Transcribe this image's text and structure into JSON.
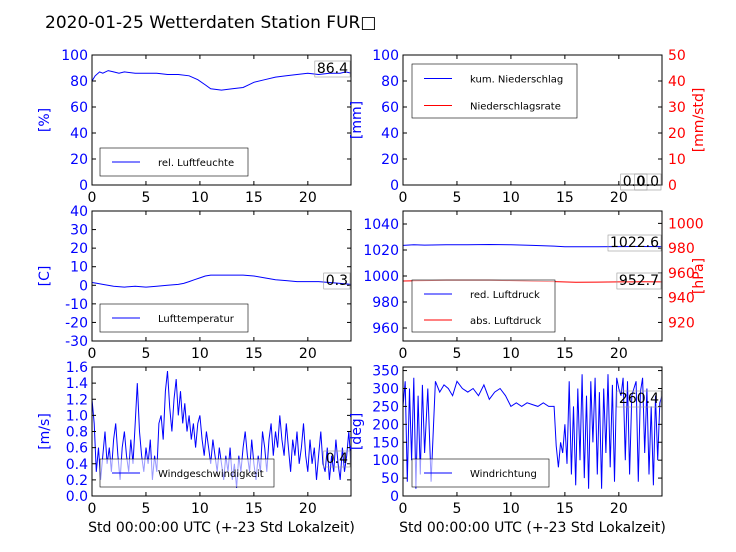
{
  "figure": {
    "title": "2020-01-25 Wetterdaten Station FUR□",
    "colors": {
      "blue": "#0000ff",
      "red": "#ff0000",
      "black": "#000000"
    }
  },
  "chart_data": [
    {
      "id": "hum",
      "type": "line",
      "xlim": [
        0,
        24
      ],
      "ylim": [
        0,
        100
      ],
      "xticks": [
        0,
        5,
        10,
        15,
        20
      ],
      "yticks": [
        0,
        20,
        40,
        60,
        80,
        100
      ],
      "ylabel": "[%]",
      "xlabel": "",
      "legend_placement": "lower-left",
      "current_value": "86.4",
      "series": [
        {
          "name": "rel. Luftfeuchte",
          "color": "#0000ff",
          "axis": "left",
          "x": [
            0,
            0.3,
            0.7,
            1.0,
            1.5,
            2.0,
            2.5,
            3.0,
            4.0,
            5.0,
            6.0,
            7.0,
            8.0,
            9.0,
            9.8,
            10.5,
            11.0,
            12.0,
            13.0,
            14.0,
            14.5,
            15.0,
            16.0,
            17.0,
            18.0,
            19.0,
            20.0,
            21.0,
            22.0,
            23.0,
            23.5,
            24.0
          ],
          "y": [
            80,
            84,
            87,
            86,
            88,
            87,
            86,
            87,
            86,
            86,
            86,
            85,
            85,
            84,
            81,
            77,
            74,
            73,
            74,
            75,
            77,
            79,
            81,
            83,
            84,
            85,
            86,
            85,
            86,
            86,
            87,
            86
          ]
        }
      ]
    },
    {
      "id": "rain",
      "type": "line",
      "xlim": [
        0,
        24
      ],
      "ylim": [
        0,
        100
      ],
      "ylim_right": [
        0,
        50
      ],
      "xticks": [
        0,
        5,
        10,
        15,
        20
      ],
      "yticks": [
        0,
        20,
        40,
        60,
        80,
        100
      ],
      "yticks_right": [
        0,
        10,
        20,
        30,
        40,
        50
      ],
      "ylabel": "[mm]",
      "ylabel_right": "[mm/std]",
      "xlabel": "",
      "legend_placement": "upper-left",
      "current_value": "0.0",
      "current_value_2": "0.0",
      "series": [
        {
          "name": "kum. Niederschlag",
          "color": "#0000ff",
          "axis": "left",
          "x": [
            0,
            24
          ],
          "y": [
            0,
            0
          ]
        },
        {
          "name": "Niederschlagsrate",
          "color": "#ff0000",
          "axis": "right",
          "x": [
            0,
            24
          ],
          "y": [
            0,
            0
          ]
        }
      ]
    },
    {
      "id": "temp",
      "type": "line",
      "xlim": [
        0,
        24
      ],
      "ylim": [
        -30,
        40
      ],
      "xticks": [
        0,
        5,
        10,
        15,
        20
      ],
      "yticks": [
        -30,
        -20,
        -10,
        0,
        10,
        20,
        30,
        40
      ],
      "ylabel": "[C]",
      "xlabel": "",
      "legend_placement": "lower-left",
      "current_value": "0.3",
      "series": [
        {
          "name": "Lufttemperatur",
          "color": "#0000ff",
          "axis": "left",
          "x": [
            0,
            0.5,
            1.0,
            2.0,
            3.0,
            4.0,
            5.0,
            6.0,
            7.0,
            8.0,
            8.5,
            9.0,
            9.5,
            10.0,
            10.5,
            11.0,
            12.0,
            13.0,
            14.0,
            15.0,
            16.0,
            17.0,
            18.0,
            19.0,
            20.0,
            21.0,
            22.0,
            23.0,
            24.0
          ],
          "y": [
            1.5,
            1.0,
            0.5,
            -0.5,
            -1.0,
            -0.5,
            -1.0,
            -0.5,
            0,
            0.5,
            1.0,
            2.0,
            3.0,
            4.0,
            5.0,
            5.5,
            5.5,
            5.5,
            5.5,
            5.0,
            4.0,
            3.0,
            2.5,
            2.0,
            2.0,
            2.0,
            1.5,
            1.0,
            0.5
          ]
        }
      ]
    },
    {
      "id": "pressure",
      "type": "line",
      "xlim": [
        0,
        24
      ],
      "ylim": [
        950,
        1050
      ],
      "ylim_right": [
        905,
        1010
      ],
      "xticks": [
        0,
        5,
        10,
        15,
        20
      ],
      "yticks": [
        960,
        980,
        1000,
        1020,
        1040
      ],
      "yticks_right": [
        920,
        940,
        960,
        980,
        1000
      ],
      "ylabel": "",
      "ylabel_right": "[hPa]",
      "xlabel": "",
      "legend_placement": "lower-left",
      "current_value": "1022.6",
      "current_value_2": "952.7",
      "series": [
        {
          "name": "red. Luftdruck",
          "color": "#0000ff",
          "axis": "left",
          "x": [
            0,
            1,
            2,
            4,
            6,
            8,
            10,
            12,
            14,
            15,
            16,
            18,
            20,
            22,
            24
          ],
          "y": [
            1023.5,
            1024,
            1023.8,
            1024,
            1024,
            1024.2,
            1024,
            1023.5,
            1023,
            1022.5,
            1022.5,
            1022.5,
            1022.6,
            1022.7,
            1022.6
          ]
        },
        {
          "name": "abs. Luftdruck",
          "color": "#ff0000",
          "axis": "right",
          "x": [
            0,
            2,
            4,
            6,
            8,
            10,
            12,
            14,
            16,
            18,
            20,
            22,
            24
          ],
          "y": [
            953.5,
            953.8,
            954,
            954,
            954,
            953.8,
            953.3,
            953,
            952.5,
            952.6,
            952.7,
            952.8,
            952.7
          ]
        }
      ]
    },
    {
      "id": "wind",
      "type": "line",
      "xlim": [
        0,
        24
      ],
      "ylim": [
        0,
        1.6
      ],
      "xticks": [
        0,
        5,
        10,
        15,
        20
      ],
      "yticks": [
        0.0,
        0.2,
        0.4,
        0.6,
        0.8,
        1.0,
        1.2,
        1.4,
        1.6
      ],
      "ylabel": "[m/s]",
      "xlabel": "Std 00:00:00 UTC (+-23 Std Lokalzeit)",
      "legend_placement": "lower-left",
      "current_value": "0.4",
      "series": [
        {
          "name": "Windgeschwindigkeit",
          "color": "#0000ff",
          "axis": "left",
          "x": [
            0,
            0.2,
            0.4,
            0.6,
            0.8,
            1.0,
            1.2,
            1.4,
            1.6,
            1.8,
            2.0,
            2.2,
            2.4,
            2.6,
            2.8,
            3.0,
            3.2,
            3.4,
            3.6,
            3.8,
            4.0,
            4.2,
            4.4,
            4.6,
            4.8,
            5.0,
            5.2,
            5.4,
            5.6,
            5.8,
            6.0,
            6.2,
            6.4,
            6.6,
            6.8,
            7.0,
            7.2,
            7.4,
            7.6,
            7.8,
            8.0,
            8.2,
            8.4,
            8.6,
            8.8,
            9.0,
            9.2,
            9.4,
            9.6,
            9.8,
            10.0,
            10.2,
            10.4,
            10.6,
            10.8,
            11.0,
            11.2,
            11.4,
            11.6,
            11.8,
            12.0,
            12.2,
            12.4,
            12.6,
            12.8,
            13.0,
            13.2,
            13.4,
            13.6,
            13.8,
            14.0,
            14.2,
            14.4,
            14.6,
            14.8,
            15.0,
            15.2,
            15.4,
            15.6,
            15.8,
            16.0,
            16.2,
            16.4,
            16.6,
            16.8,
            17.0,
            17.2,
            17.4,
            17.6,
            17.8,
            18.0,
            18.2,
            18.4,
            18.6,
            18.8,
            19.0,
            19.2,
            19.4,
            19.6,
            19.8,
            20.0,
            20.2,
            20.4,
            20.6,
            20.8,
            21.0,
            21.2,
            21.4,
            21.6,
            21.8,
            22.0,
            22.2,
            22.4,
            22.6,
            22.8,
            23.0,
            23.2,
            23.4,
            23.6,
            23.8,
            24.0
          ],
          "y": [
            1.2,
            0.9,
            0.3,
            0.6,
            0.2,
            0.5,
            0.8,
            0.4,
            0.6,
            0.3,
            0.7,
            0.9,
            0.5,
            0.2,
            0.6,
            0.8,
            0.5,
            0.3,
            0.7,
            0.4,
            0.9,
            1.4,
            0.8,
            0.5,
            0.3,
            0.6,
            0.4,
            0.7,
            0.2,
            0.5,
            0.3,
            0.9,
            1.0,
            0.7,
            1.3,
            1.55,
            1.1,
            0.8,
            1.2,
            1.45,
            1.0,
            1.3,
            0.9,
            1.15,
            0.8,
            1.0,
            0.7,
            0.9,
            0.6,
            0.9,
            1.0,
            0.7,
            0.5,
            0.8,
            0.6,
            0.4,
            0.7,
            0.5,
            0.3,
            0.6,
            0.4,
            0.2,
            0.5,
            0.3,
            0.6,
            0.2,
            0.4,
            0.1,
            0.5,
            0.3,
            0.6,
            0.8,
            0.5,
            0.3,
            0.7,
            0.4,
            0.2,
            0.5,
            0.3,
            0.8,
            0.6,
            0.3,
            0.7,
            0.9,
            0.5,
            0.8,
            0.6,
            1.0,
            0.7,
            0.5,
            0.9,
            0.6,
            0.3,
            0.7,
            0.5,
            0.8,
            0.4,
            0.6,
            0.9,
            0.5,
            0.3,
            0.7,
            0.4,
            0.6,
            0.2,
            0.5,
            0.8,
            0.4,
            0.3,
            0.6,
            0.2,
            0.5,
            0.3,
            0.7,
            0.4,
            0.2,
            0.6,
            0.3,
            0.5,
            0.8,
            0.4
          ]
        }
      ]
    },
    {
      "id": "dir",
      "type": "line",
      "xlim": [
        0,
        24
      ],
      "ylim": [
        0,
        360
      ],
      "xticks": [
        0,
        5,
        10,
        15,
        20
      ],
      "yticks": [
        0,
        50,
        100,
        150,
        200,
        250,
        300,
        350
      ],
      "ylabel": "[deg]",
      "xlabel": "Std 00:00:00 UTC (+-23 Std Lokalzeit)",
      "legend_placement": "lower-left",
      "current_value": "260.4",
      "series": [
        {
          "name": "Windrichtung",
          "color": "#0000ff",
          "axis": "left",
          "x": [
            0,
            0.2,
            0.4,
            0.6,
            0.8,
            1.0,
            1.2,
            1.4,
            1.6,
            1.8,
            2.0,
            2.3,
            2.6,
            3.0,
            3.4,
            3.8,
            4.2,
            4.6,
            5.0,
            5.5,
            6.0,
            6.5,
            7.0,
            7.5,
            8.0,
            8.5,
            9.0,
            9.5,
            10.0,
            10.5,
            11.0,
            11.5,
            12.0,
            12.5,
            13.0,
            13.5,
            14.0,
            14.2,
            14.4,
            14.6,
            14.8,
            15.0,
            15.2,
            15.4,
            15.6,
            15.8,
            16.0,
            16.2,
            16.4,
            16.6,
            16.8,
            17.0,
            17.2,
            17.4,
            17.6,
            17.8,
            18.0,
            18.2,
            18.4,
            18.6,
            18.8,
            19.0,
            19.2,
            19.4,
            19.6,
            19.8,
            20.0,
            20.2,
            20.4,
            20.6,
            20.8,
            21.0,
            21.2,
            21.4,
            21.6,
            21.8,
            22.0,
            22.2,
            22.4,
            22.6,
            22.8,
            23.0,
            23.2,
            23.4,
            23.6,
            23.8,
            24.0
          ],
          "y": [
            250,
            320,
            40,
            300,
            100,
            330,
            20,
            280,
            60,
            310,
            120,
            300,
            40,
            320,
            290,
            310,
            300,
            280,
            320,
            300,
            290,
            300,
            280,
            310,
            270,
            290,
            300,
            280,
            250,
            260,
            250,
            260,
            255,
            250,
            260,
            250,
            250,
            140,
            80,
            150,
            120,
            200,
            90,
            320,
            60,
            250,
            30,
            300,
            100,
            340,
            50,
            280,
            20,
            320,
            150,
            330,
            60,
            290,
            20,
            300,
            120,
            340,
            80,
            310,
            40,
            330,
            300,
            280,
            330,
            100,
            320,
            60,
            280,
            300,
            320,
            40,
            290,
            330,
            120,
            300,
            60,
            250,
            30,
            280,
            100,
            260,
            280
          ]
        }
      ]
    }
  ]
}
